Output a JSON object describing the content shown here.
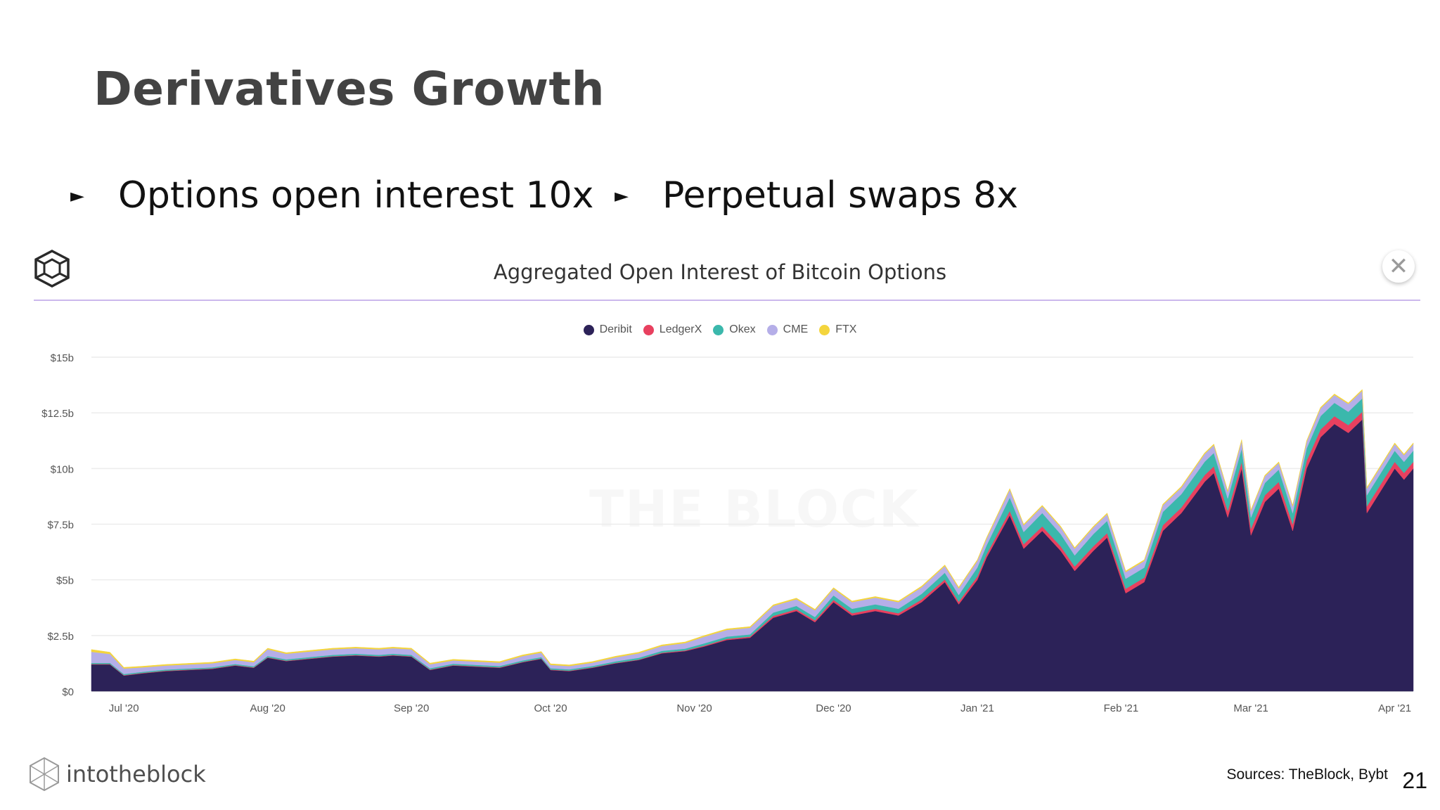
{
  "slide": {
    "title": "Derivatives Growth",
    "bullets": [
      "Options open interest 10x",
      "Perpetual swaps 8x"
    ],
    "sources": "Sources: TheBlock, Bybt",
    "page_number": "21",
    "brand": "intotheblock"
  },
  "chart_header": {
    "title": "Aggregated Open Interest of Bitcoin Options",
    "close_label": "✕",
    "watermark": "THE BLOCK"
  },
  "chart_data": {
    "type": "area",
    "stacked": true,
    "title": "Aggregated Open Interest of Bitcoin Options",
    "xlabel": "",
    "ylabel": "",
    "x_range": [
      "2020-06-24",
      "2021-04-05"
    ],
    "x_ticks": [
      {
        "date": "2020-07-01",
        "label": "Jul '20"
      },
      {
        "date": "2020-08-01",
        "label": "Aug '20"
      },
      {
        "date": "2020-09-01",
        "label": "Sep '20"
      },
      {
        "date": "2020-10-01",
        "label": "Oct '20"
      },
      {
        "date": "2020-11-01",
        "label": "Nov '20"
      },
      {
        "date": "2020-12-01",
        "label": "Dec '20"
      },
      {
        "date": "2021-01-01",
        "label": "Jan '21"
      },
      {
        "date": "2021-02-01",
        "label": "Feb '21"
      },
      {
        "date": "2021-03-01",
        "label": "Mar '21"
      },
      {
        "date": "2021-04-01",
        "label": "Apr '21"
      }
    ],
    "y_range": [
      0,
      15
    ],
    "y_unit": "billion USD",
    "y_ticks": [
      {
        "value": 0,
        "label": "$0"
      },
      {
        "value": 2.5,
        "label": "$2.5b"
      },
      {
        "value": 5,
        "label": "$5b"
      },
      {
        "value": 7.5,
        "label": "$7.5b"
      },
      {
        "value": 10,
        "label": "$10b"
      },
      {
        "value": 12.5,
        "label": "$12.5b"
      },
      {
        "value": 15,
        "label": "$15b"
      }
    ],
    "grid": true,
    "legend_position": "top-center",
    "series": [
      {
        "name": "Deribit",
        "color": "#2c2258"
      },
      {
        "name": "LedgerX",
        "color": "#e8405f"
      },
      {
        "name": "Okex",
        "color": "#3bb8ac"
      },
      {
        "name": "CME",
        "color": "#b5aee8"
      },
      {
        "name": "FTX",
        "color": "#f4d53d"
      }
    ],
    "x": [
      "2020-06-24",
      "2020-06-28",
      "2020-07-01",
      "2020-07-05",
      "2020-07-10",
      "2020-07-15",
      "2020-07-20",
      "2020-07-25",
      "2020-07-29",
      "2020-08-01",
      "2020-08-05",
      "2020-08-10",
      "2020-08-15",
      "2020-08-20",
      "2020-08-25",
      "2020-08-28",
      "2020-09-01",
      "2020-09-05",
      "2020-09-10",
      "2020-09-15",
      "2020-09-20",
      "2020-09-25",
      "2020-09-29",
      "2020-10-01",
      "2020-10-05",
      "2020-10-10",
      "2020-10-15",
      "2020-10-20",
      "2020-10-25",
      "2020-10-30",
      "2020-11-03",
      "2020-11-08",
      "2020-11-13",
      "2020-11-18",
      "2020-11-23",
      "2020-11-27",
      "2020-12-01",
      "2020-12-05",
      "2020-12-10",
      "2020-12-15",
      "2020-12-20",
      "2020-12-25",
      "2020-12-28",
      "2021-01-01",
      "2021-01-03",
      "2021-01-08",
      "2021-01-11",
      "2021-01-15",
      "2021-01-19",
      "2021-01-22",
      "2021-01-26",
      "2021-01-29",
      "2021-02-02",
      "2021-02-06",
      "2021-02-10",
      "2021-02-14",
      "2021-02-19",
      "2021-02-21",
      "2021-02-24",
      "2021-02-27",
      "2021-03-01",
      "2021-03-04",
      "2021-03-07",
      "2021-03-10",
      "2021-03-13",
      "2021-03-16",
      "2021-03-19",
      "2021-03-22",
      "2021-03-25",
      "2021-03-26",
      "2021-03-29",
      "2021-04-01",
      "2021-04-03",
      "2021-04-05"
    ],
    "values": {
      "Deribit": [
        1.2,
        1.2,
        0.7,
        0.8,
        0.9,
        0.95,
        1.0,
        1.15,
        1.05,
        1.5,
        1.35,
        1.45,
        1.55,
        1.6,
        1.55,
        1.6,
        1.55,
        0.95,
        1.15,
        1.1,
        1.05,
        1.3,
        1.45,
        0.95,
        0.9,
        1.05,
        1.25,
        1.4,
        1.7,
        1.8,
        2.0,
        2.3,
        2.4,
        3.3,
        3.6,
        3.1,
        4.0,
        3.4,
        3.6,
        3.4,
        4.0,
        4.9,
        3.9,
        5.0,
        6.0,
        7.9,
        6.4,
        7.2,
        6.3,
        5.4,
        6.3,
        6.9,
        4.4,
        4.9,
        7.2,
        8.0,
        9.4,
        9.8,
        7.8,
        10.0,
        7.0,
        8.5,
        9.1,
        7.2,
        10.0,
        11.4,
        12.0,
        11.6,
        12.2,
        8.0,
        9.0,
        10.0,
        9.5,
        10.0
      ],
      "LedgerX": [
        0.02,
        0.02,
        0.02,
        0.02,
        0.02,
        0.02,
        0.02,
        0.02,
        0.02,
        0.02,
        0.02,
        0.02,
        0.02,
        0.02,
        0.02,
        0.02,
        0.02,
        0.02,
        0.02,
        0.02,
        0.02,
        0.02,
        0.02,
        0.02,
        0.02,
        0.02,
        0.02,
        0.02,
        0.03,
        0.03,
        0.04,
        0.05,
        0.05,
        0.08,
        0.08,
        0.08,
        0.1,
        0.1,
        0.1,
        0.1,
        0.12,
        0.12,
        0.12,
        0.15,
        0.15,
        0.2,
        0.2,
        0.2,
        0.2,
        0.2,
        0.2,
        0.2,
        0.2,
        0.2,
        0.25,
        0.25,
        0.3,
        0.3,
        0.3,
        0.3,
        0.3,
        0.3,
        0.3,
        0.3,
        0.35,
        0.35,
        0.35,
        0.35,
        0.35,
        0.3,
        0.3,
        0.3,
        0.3,
        0.3
      ],
      "Okex": [
        0.05,
        0.05,
        0.05,
        0.05,
        0.05,
        0.05,
        0.05,
        0.05,
        0.05,
        0.06,
        0.06,
        0.06,
        0.06,
        0.06,
        0.06,
        0.06,
        0.06,
        0.06,
        0.06,
        0.06,
        0.06,
        0.06,
        0.06,
        0.06,
        0.06,
        0.06,
        0.07,
        0.08,
        0.08,
        0.08,
        0.1,
        0.1,
        0.1,
        0.15,
        0.15,
        0.15,
        0.2,
        0.2,
        0.2,
        0.2,
        0.25,
        0.3,
        0.3,
        0.4,
        0.4,
        0.6,
        0.55,
        0.6,
        0.55,
        0.5,
        0.55,
        0.55,
        0.45,
        0.45,
        0.6,
        0.6,
        0.6,
        0.6,
        0.55,
        0.6,
        0.5,
        0.55,
        0.55,
        0.5,
        0.55,
        0.6,
        0.6,
        0.6,
        0.6,
        0.5,
        0.5,
        0.5,
        0.5,
        0.5
      ],
      "CME": [
        0.5,
        0.4,
        0.25,
        0.2,
        0.18,
        0.18,
        0.18,
        0.18,
        0.18,
        0.3,
        0.25,
        0.25,
        0.25,
        0.25,
        0.25,
        0.25,
        0.25,
        0.18,
        0.15,
        0.15,
        0.15,
        0.2,
        0.2,
        0.15,
        0.15,
        0.15,
        0.18,
        0.2,
        0.22,
        0.25,
        0.3,
        0.3,
        0.3,
        0.3,
        0.3,
        0.3,
        0.3,
        0.3,
        0.3,
        0.3,
        0.3,
        0.3,
        0.3,
        0.3,
        0.3,
        0.35,
        0.3,
        0.3,
        0.3,
        0.3,
        0.3,
        0.3,
        0.3,
        0.3,
        0.3,
        0.3,
        0.35,
        0.35,
        0.3,
        0.35,
        0.3,
        0.3,
        0.3,
        0.3,
        0.3,
        0.35,
        0.35,
        0.35,
        0.35,
        0.3,
        0.3,
        0.3,
        0.3,
        0.3
      ],
      "FTX": [
        0.1,
        0.08,
        0.05,
        0.05,
        0.05,
        0.05,
        0.05,
        0.05,
        0.05,
        0.05,
        0.05,
        0.05,
        0.05,
        0.05,
        0.05,
        0.05,
        0.05,
        0.05,
        0.05,
        0.05,
        0.05,
        0.05,
        0.05,
        0.05,
        0.05,
        0.05,
        0.05,
        0.05,
        0.05,
        0.05,
        0.05,
        0.05,
        0.05,
        0.05,
        0.05,
        0.05,
        0.05,
        0.05,
        0.05,
        0.05,
        0.05,
        0.05,
        0.05,
        0.05,
        0.05,
        0.05,
        0.05,
        0.05,
        0.05,
        0.05,
        0.05,
        0.05,
        0.05,
        0.05,
        0.05,
        0.05,
        0.05,
        0.05,
        0.05,
        0.05,
        0.05,
        0.05,
        0.05,
        0.05,
        0.05,
        0.05,
        0.05,
        0.05,
        0.05,
        0.05,
        0.05,
        0.05,
        0.05,
        0.05
      ]
    }
  }
}
